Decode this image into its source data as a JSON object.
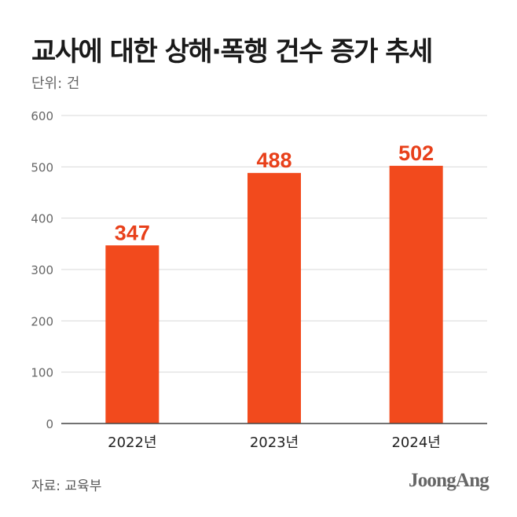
{
  "title": "교사에 대한 상해·폭행 건수 증가 추세",
  "unit_label": "단위: 건",
  "source": "자료: 교육부",
  "logo": "JoongAng",
  "colors": {
    "bar": "#f24a1d",
    "value_label": "#e8401a",
    "grid": "#d9d9d9",
    "axis": "#444444",
    "tick_text": "#666666"
  },
  "chart_data": {
    "type": "bar",
    "title": "교사에 대한 상해·폭행 건수 증가 추세",
    "categories": [
      "2022년",
      "2023년",
      "2024년"
    ],
    "values": [
      347,
      488,
      502
    ],
    "value_labels": [
      "347",
      "488",
      "502"
    ],
    "ylabel": "단위: 건",
    "xlabel": "",
    "ylim": [
      0,
      600
    ],
    "yticks": [
      0,
      100,
      200,
      300,
      400,
      500,
      600
    ],
    "ytick_labels": [
      "0",
      "100",
      "200",
      "300",
      "400",
      "500",
      "600"
    ],
    "grid": true
  }
}
